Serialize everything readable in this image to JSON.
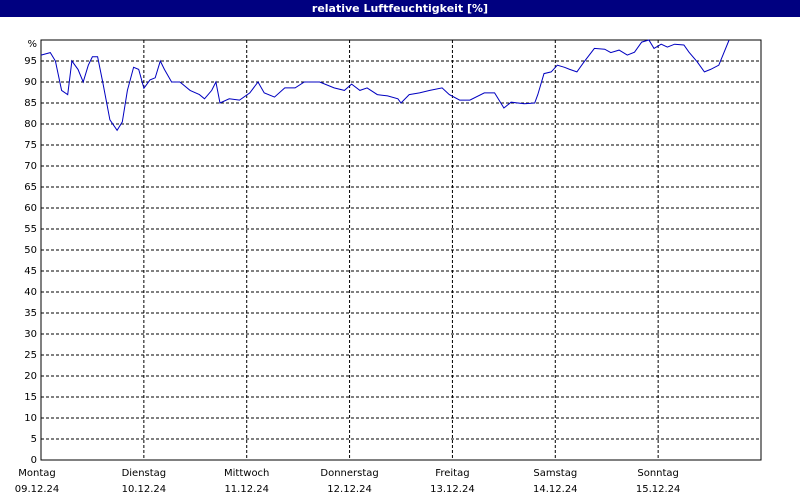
{
  "chart_data": {
    "type": "line",
    "title": "relative Luftfeuchtigkeit [%]",
    "x": [
      0,
      0.09,
      0.14,
      0.2,
      0.26,
      0.3,
      0.36,
      0.41,
      0.46,
      0.5,
      0.55,
      0.6,
      0.67,
      0.74,
      0.79,
      0.84,
      0.9,
      0.95,
      1,
      1.06,
      1.11,
      1.16,
      1.2,
      1.27,
      1.35,
      1.45,
      1.54,
      1.59,
      1.66,
      1.7,
      1.74,
      1.83,
      1.93,
      2.03,
      2.11,
      2.17,
      2.27,
      2.37,
      2.47,
      2.56,
      2.71,
      2.85,
      2.95,
      3.02,
      3.1,
      3.17,
      3.27,
      3.37,
      3.47,
      3.5,
      3.58,
      3.68,
      3.78,
      3.9,
      3.97,
      4.07,
      4.17,
      4.31,
      4.41,
      4.5,
      4.57,
      4.7,
      4.8,
      4.83,
      4.89,
      4.96,
      5.02,
      5.09,
      5.14,
      5.21,
      5.28,
      5.38,
      5.48,
      5.54,
      5.62,
      5.7,
      5.77,
      5.84,
      5.91,
      5.96,
      6.03,
      6.09,
      6.16,
      6.25,
      6.3,
      6.38,
      6.45,
      6.51,
      6.59,
      6.69
    ],
    "series": [
      {
        "color": "#0000c0",
        "values": [
          96.4,
          97,
          95,
          88,
          87,
          95,
          93,
          90,
          94,
          96,
          96,
          90,
          81,
          78.5,
          80.5,
          88,
          93.5,
          93,
          88.5,
          90.5,
          91,
          95,
          93,
          90,
          90,
          88,
          87,
          86,
          88,
          90,
          85,
          86,
          85.7,
          87.4,
          90,
          87.4,
          86.4,
          88.6,
          88.6,
          90,
          90,
          88.6,
          88,
          89.5,
          88,
          88.6,
          87,
          86.7,
          86,
          85,
          87,
          87.4,
          88,
          88.6,
          87,
          85.7,
          85.7,
          87.4,
          87.4,
          83.8,
          85.2,
          84.8,
          85,
          87,
          92,
          92.4,
          94,
          93.5,
          93,
          92.4,
          94.8,
          98,
          97.8,
          97,
          97.6,
          96.4,
          97.1,
          99.5,
          100,
          98,
          99,
          98.3,
          99,
          98.8,
          97.1,
          94.8,
          92.4,
          93,
          94,
          100
        ]
      }
    ],
    "xlim": [
      0,
      7
    ],
    "xticks": [
      {
        "value": 0,
        "label": "Montag"
      },
      {
        "value": 1,
        "label": "Dienstag"
      },
      {
        "value": 2,
        "label": "Mittwoch"
      },
      {
        "value": 3,
        "label": "Donnerstag"
      },
      {
        "value": 4,
        "label": "Freitag"
      },
      {
        "value": 5,
        "label": "Samstag"
      },
      {
        "value": 6,
        "label": "Sonntag"
      }
    ],
    "xtick_dates": [
      "09.12.24",
      "10.12.24",
      "11.12.24",
      "12.12.24",
      "13.12.24",
      "14.12.24",
      "15.12.24"
    ],
    "ylim": [
      0,
      100
    ],
    "yticks": [
      0,
      5,
      10,
      15,
      20,
      25,
      30,
      35,
      40,
      45,
      50,
      55,
      60,
      65,
      70,
      75,
      80,
      85,
      90,
      95,
      {
        "value": 100,
        "label": "%"
      }
    ],
    "grid": true
  }
}
